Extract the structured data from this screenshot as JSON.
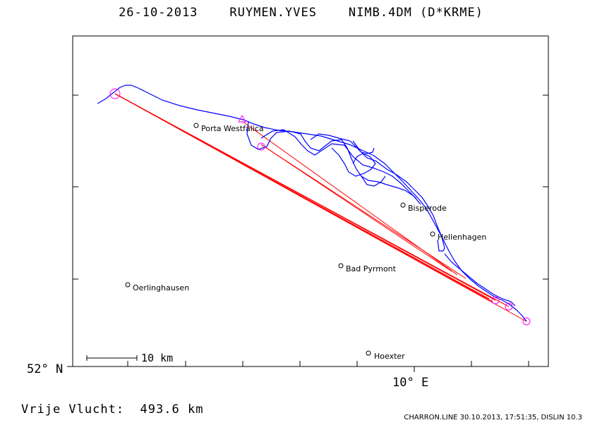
{
  "header": {
    "date": "26-10-2013",
    "pilot": "RUYMEN.YVES",
    "glider": "NIMB.4DM (D*KRME)"
  },
  "map": {
    "lat_label": "52° N",
    "lon_label": "10° E",
    "scale_label": "10 km",
    "places": [
      {
        "name": "Porta Westfalica",
        "id": "porta-westfalica"
      },
      {
        "name": "Bisperode",
        "id": "bisperode"
      },
      {
        "name": "Hellenhagen",
        "id": "hellenhagen"
      },
      {
        "name": "Bad Pyrmont",
        "id": "bad-pyrmont"
      },
      {
        "name": "Oerlinghausen",
        "id": "oerlinghausen"
      },
      {
        "name": "Hoexter",
        "id": "hoexter"
      }
    ],
    "colors": {
      "track": "#0000ff",
      "task": "#ff0000",
      "turnpoint": "#ff00ff"
    }
  },
  "summary": {
    "label": "Vrije Vlucht:",
    "distance": "493.6 km"
  },
  "footer": "CHARRON.LINE 30.10.2013, 17:51:35, DISLIN 10.3"
}
